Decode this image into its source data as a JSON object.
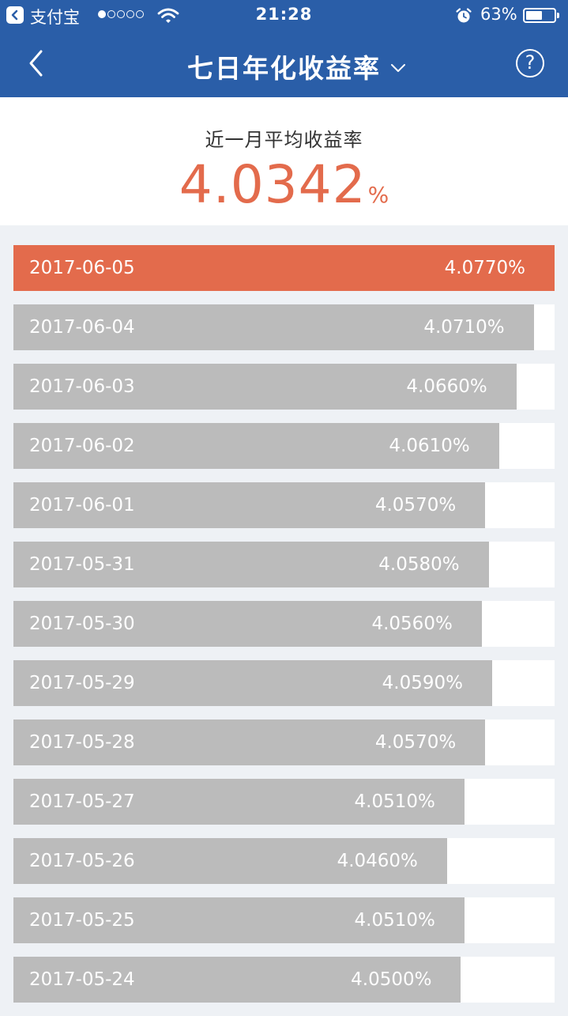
{
  "status_bar": {
    "back_app_label": "支付宝",
    "time": "21:28",
    "battery": "63%",
    "battery_level": 0.63,
    "signal_bars_filled": 1,
    "signal_bars_total": 5
  },
  "nav": {
    "title": "七日年化收益率",
    "back_icon": "chevron-left-icon",
    "dropdown_icon": "chevron-down-icon",
    "help_label": "?"
  },
  "summary": {
    "label": "近一月平均收益率",
    "value": "4.0342",
    "unit": "%"
  },
  "colors": {
    "header_bg": "#2a5ea8",
    "highlight": "#e36b4c",
    "bar": "#bbbbbb"
  },
  "rates": [
    {
      "date": "2017-06-05",
      "rate": "4.0770%",
      "value": 4.077,
      "highlight": true
    },
    {
      "date": "2017-06-04",
      "rate": "4.0710%",
      "value": 4.071
    },
    {
      "date": "2017-06-03",
      "rate": "4.0660%",
      "value": 4.066
    },
    {
      "date": "2017-06-02",
      "rate": "4.0610%",
      "value": 4.061
    },
    {
      "date": "2017-06-01",
      "rate": "4.0570%",
      "value": 4.057
    },
    {
      "date": "2017-05-31",
      "rate": "4.0580%",
      "value": 4.058
    },
    {
      "date": "2017-05-30",
      "rate": "4.0560%",
      "value": 4.056
    },
    {
      "date": "2017-05-29",
      "rate": "4.0590%",
      "value": 4.059
    },
    {
      "date": "2017-05-28",
      "rate": "4.0570%",
      "value": 4.057
    },
    {
      "date": "2017-05-27",
      "rate": "4.0510%",
      "value": 4.051
    },
    {
      "date": "2017-05-26",
      "rate": "4.0460%",
      "value": 4.046
    },
    {
      "date": "2017-05-25",
      "rate": "4.0510%",
      "value": 4.051
    },
    {
      "date": "2017-05-24",
      "rate": "4.0500%",
      "value": 4.05
    }
  ]
}
